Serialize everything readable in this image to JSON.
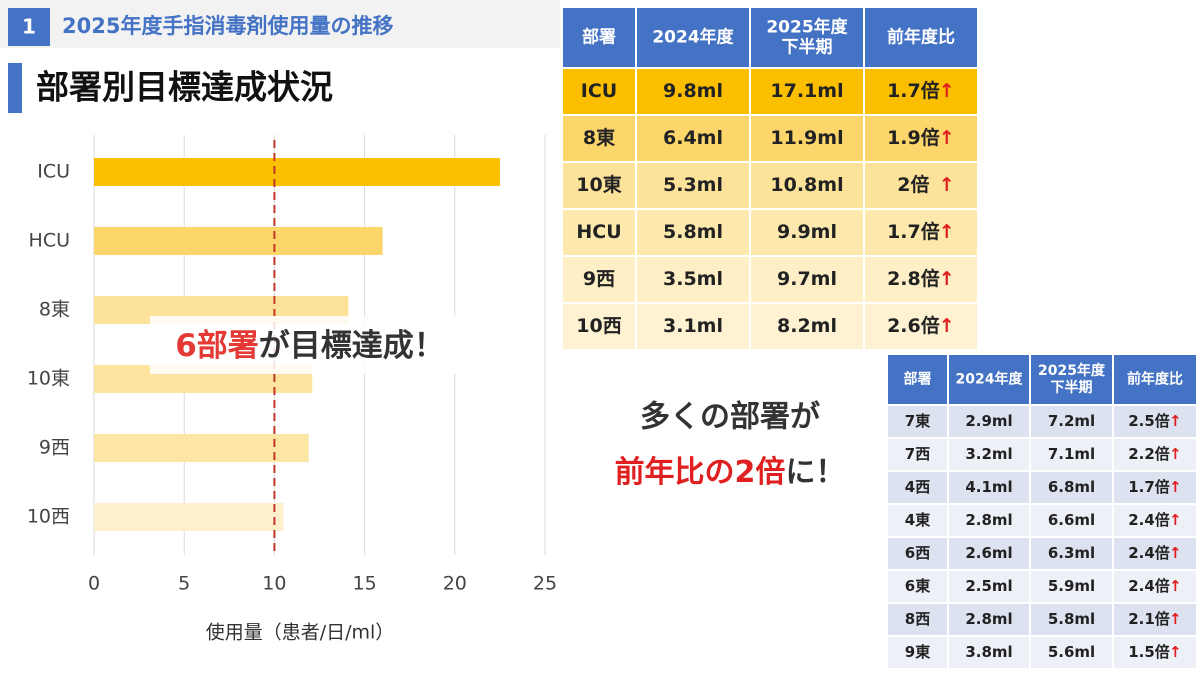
{
  "header": {
    "number": "1",
    "title": "2025年度手指消毒剤使用量の推移",
    "subtitle": "部署別目標達成状況"
  },
  "chart_data": {
    "type": "bar",
    "orientation": "horizontal",
    "categories": [
      "ICU",
      "HCU",
      "8東",
      "10東",
      "9西",
      "10西"
    ],
    "values": [
      22.5,
      16.0,
      14.1,
      12.1,
      11.9,
      10.5
    ],
    "colors": [
      "#fbbf00",
      "#fcd56b",
      "#fde39a",
      "#fde49f",
      "#fde5a3",
      "#fef0cc"
    ],
    "xlim": [
      0,
      25
    ],
    "xticks": [
      0,
      5,
      10,
      15,
      20,
      25
    ],
    "xlabel": "使用量（患者/日/ml）",
    "grid": true,
    "target_line": 10,
    "target_color": "#c0392b",
    "annotation": {
      "highlight": "6部署",
      "text": "が目標達成！"
    }
  },
  "table1": {
    "headers": [
      "部署",
      "2024年度",
      [
        "2025年度",
        "下半期"
      ],
      "前年度比"
    ],
    "header_color": "#4472c4",
    "row_colors": [
      "#fbbf00",
      "#fcd56b",
      "#fde39a",
      "#fde9ad",
      "#feefc7",
      "#fef2d2"
    ],
    "rows": [
      [
        "ICU",
        "9.8ml",
        "17.1ml",
        "1.7倍"
      ],
      [
        "8東",
        "6.4ml",
        "11.9ml",
        "1.9倍"
      ],
      [
        "10東",
        "5.3ml",
        "10.8ml",
        "2倍"
      ],
      [
        "HCU",
        "5.8ml",
        "9.9ml",
        "1.7倍"
      ],
      [
        "9西",
        "3.5ml",
        "9.7ml",
        "2.8倍"
      ],
      [
        "10西",
        "3.1ml",
        "8.2ml",
        "2.6倍"
      ]
    ]
  },
  "callout": {
    "line1": "多くの部署が",
    "highlight": "前年比の2倍",
    "rest": "に！"
  },
  "table2": {
    "headers": [
      "部署",
      "2024年度",
      [
        "2025年度",
        "下半期"
      ],
      "前年度比"
    ],
    "header_color": "#4472c4",
    "row_colors": [
      "#dde2f0",
      "#eef0f7"
    ],
    "rows": [
      [
        "7東",
        "2.9ml",
        "7.2ml",
        "2.5倍"
      ],
      [
        "7西",
        "3.2ml",
        "7.1ml",
        "2.2倍"
      ],
      [
        "4西",
        "4.1ml",
        "6.8ml",
        "1.7倍"
      ],
      [
        "4東",
        "2.8ml",
        "6.6ml",
        "2.4倍"
      ],
      [
        "6西",
        "2.6ml",
        "6.3ml",
        "2.4倍"
      ],
      [
        "6東",
        "2.5ml",
        "5.9ml",
        "2.4倍"
      ],
      [
        "8西",
        "2.8ml",
        "5.8ml",
        "2.1倍"
      ],
      [
        "9東",
        "3.8ml",
        "5.6ml",
        "1.5倍"
      ]
    ]
  }
}
